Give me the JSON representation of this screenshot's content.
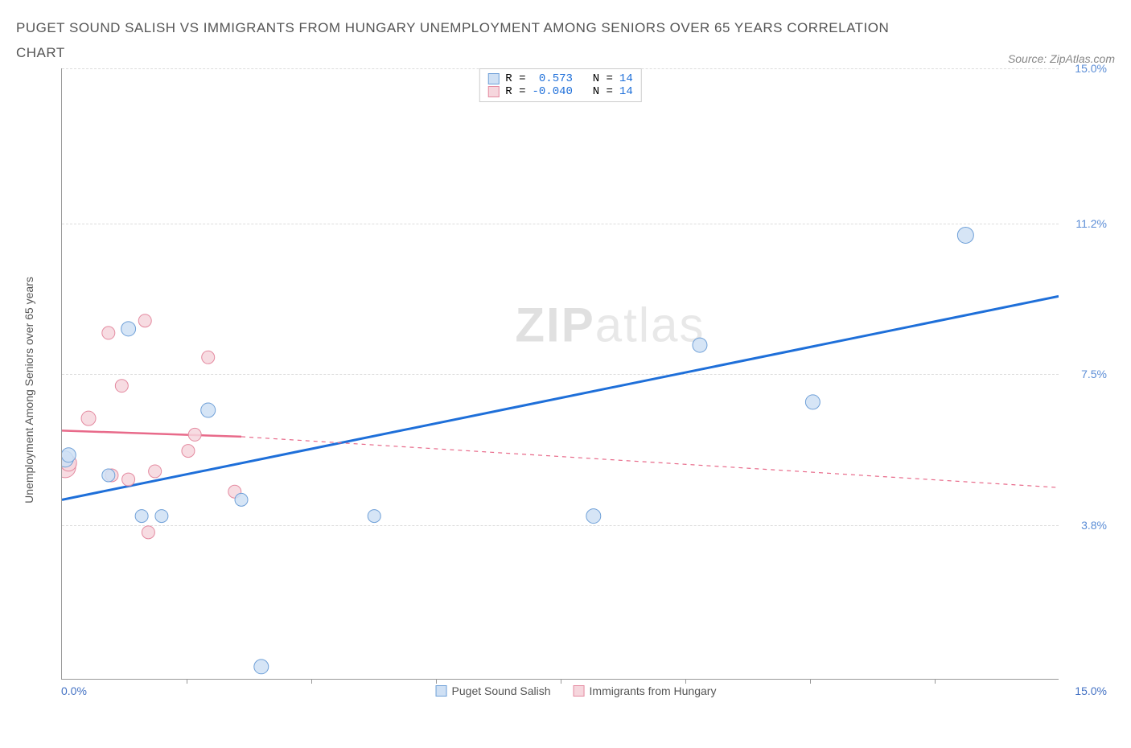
{
  "title": "PUGET SOUND SALISH VS IMMIGRANTS FROM HUNGARY UNEMPLOYMENT AMONG SENIORS OVER 65 YEARS CORRELATION CHART",
  "source_label": "Source: ZipAtlas.com",
  "y_axis_label": "Unemployment Among Seniors over 65 years",
  "watermark_a": "ZIP",
  "watermark_b": "atlas",
  "chart": {
    "type": "scatter",
    "xlim": [
      0.0,
      15.0
    ],
    "ylim": [
      0.0,
      15.0
    ],
    "x_min_label": "0.0%",
    "x_max_label": "15.0%",
    "x_ticks": [
      1.875,
      3.75,
      5.625,
      7.5,
      9.375,
      11.25,
      13.125
    ],
    "y_ticks": [
      {
        "v": 3.8,
        "label": "3.8%"
      },
      {
        "v": 7.5,
        "label": "7.5%"
      },
      {
        "v": 11.2,
        "label": "11.2%"
      },
      {
        "v": 15.0,
        "label": "15.0%"
      }
    ],
    "y_tick_color": "#5b8dd6",
    "grid_color": "#dddddd",
    "axis_color": "#999999",
    "background_color": "#ffffff",
    "series": [
      {
        "name": "Puget Sound Salish",
        "color_fill": "#cfe0f4",
        "color_stroke": "#6fa0d8",
        "marker_radius": 9,
        "R": "0.573",
        "N": "14",
        "trend": {
          "x1": 0.0,
          "y1": 4.4,
          "x2": 15.0,
          "y2": 9.4,
          "stroke": "#1e6fd9",
          "width": 3,
          "dash": "none",
          "extrapolate_dash": "none"
        },
        "points": [
          {
            "x": 0.05,
            "y": 5.4,
            "r": 10
          },
          {
            "x": 0.1,
            "y": 5.5,
            "r": 9
          },
          {
            "x": 0.7,
            "y": 5.0,
            "r": 8
          },
          {
            "x": 1.0,
            "y": 8.6,
            "r": 9
          },
          {
            "x": 1.2,
            "y": 4.0,
            "r": 8
          },
          {
            "x": 1.5,
            "y": 4.0,
            "r": 8
          },
          {
            "x": 2.2,
            "y": 6.6,
            "r": 9
          },
          {
            "x": 2.7,
            "y": 4.4,
            "r": 8
          },
          {
            "x": 3.0,
            "y": 0.3,
            "r": 9
          },
          {
            "x": 4.7,
            "y": 4.0,
            "r": 8
          },
          {
            "x": 8.0,
            "y": 4.0,
            "r": 9
          },
          {
            "x": 9.6,
            "y": 8.2,
            "r": 9
          },
          {
            "x": 11.3,
            "y": 6.8,
            "r": 9
          },
          {
            "x": 13.6,
            "y": 10.9,
            "r": 10
          }
        ]
      },
      {
        "name": "Immigrants from Hungary",
        "color_fill": "#f6d6dd",
        "color_stroke": "#e48aa0",
        "marker_radius": 9,
        "R": "-0.040",
        "N": "14",
        "trend": {
          "x1": 0.0,
          "y1": 6.1,
          "x2": 2.7,
          "y2": 5.95,
          "stroke": "#e86a8a",
          "width": 2.5,
          "dash": "none",
          "extrap_x2": 15.0,
          "extrap_y2": 4.7,
          "extrap_dash": "5,5"
        },
        "points": [
          {
            "x": 0.05,
            "y": 5.2,
            "r": 13
          },
          {
            "x": 0.1,
            "y": 5.3,
            "r": 10
          },
          {
            "x": 0.4,
            "y": 6.4,
            "r": 9
          },
          {
            "x": 0.7,
            "y": 8.5,
            "r": 8
          },
          {
            "x": 0.75,
            "y": 5.0,
            "r": 8
          },
          {
            "x": 0.9,
            "y": 7.2,
            "r": 8
          },
          {
            "x": 1.0,
            "y": 4.9,
            "r": 8
          },
          {
            "x": 1.25,
            "y": 8.8,
            "r": 8
          },
          {
            "x": 1.3,
            "y": 3.6,
            "r": 8
          },
          {
            "x": 1.4,
            "y": 5.1,
            "r": 8
          },
          {
            "x": 1.9,
            "y": 5.6,
            "r": 8
          },
          {
            "x": 2.0,
            "y": 6.0,
            "r": 8
          },
          {
            "x": 2.2,
            "y": 7.9,
            "r": 8
          },
          {
            "x": 2.6,
            "y": 4.6,
            "r": 8
          }
        ]
      }
    ],
    "legend": {
      "items": [
        {
          "label": "Puget Sound Salish",
          "fill": "#cfe0f4",
          "stroke": "#6fa0d8"
        },
        {
          "label": "Immigrants from Hungary",
          "fill": "#f6d6dd",
          "stroke": "#e48aa0"
        }
      ]
    },
    "stats_box": {
      "rows": [
        {
          "swatch_fill": "#cfe0f4",
          "swatch_stroke": "#6fa0d8",
          "r_label": "R =",
          "r_val": " 0.573",
          "n_label": "N =",
          "n_val": "14"
        },
        {
          "swatch_fill": "#f6d6dd",
          "swatch_stroke": "#e48aa0",
          "r_label": "R =",
          "r_val": "-0.040",
          "n_label": "N =",
          "n_val": "14"
        }
      ]
    }
  }
}
